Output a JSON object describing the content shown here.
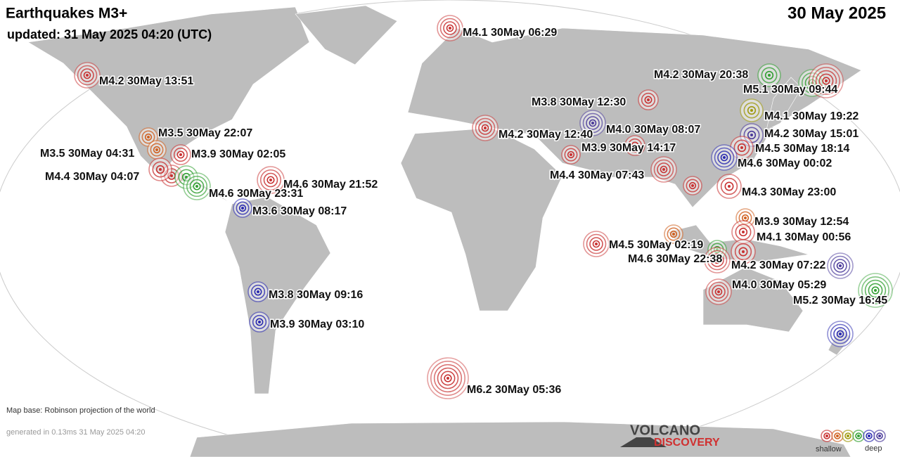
{
  "header": {
    "title": "Earthquakes M3+",
    "updated": "updated: 31 May 2025 04:20 (UTC)",
    "date": "30 May 2025"
  },
  "quakes": [
    {
      "label": "M4.1 30May 06:29",
      "color": "#c83232"
    },
    {
      "label": "M4.2 30May 13:51",
      "color": "#c83232"
    },
    {
      "label": "M4.2 30May 20:38",
      "color": "#33a033"
    },
    {
      "label": "M5.1 30May 09:44",
      "color": "#c83232"
    },
    {
      "label": "M3.8 30May 12:30",
      "color": "#c83232"
    },
    {
      "label": "M4.1 30May 19:22",
      "color": "#a09a10"
    },
    {
      "label": "M4.0 30May 08:07",
      "color": "#4a3a9a"
    },
    {
      "label": "M4.2 30May 12:40",
      "color": "#c83232"
    },
    {
      "label": "M3.5 30May 22:07",
      "color": "#d06020"
    },
    {
      "label": "M4.2 30May 15:01",
      "color": "#4a3a9a"
    },
    {
      "label": "M3.9 30May 14:17",
      "color": "#c83232"
    },
    {
      "label": "M4.5 30May 18:14",
      "color": "#c83232"
    },
    {
      "label": "M3.5 30May 04:31",
      "color": "#d06020"
    },
    {
      "label": "M3.9 30May 02:05",
      "color": "#c83232"
    },
    {
      "label": "M4.6 30May 00:02",
      "color": "#2a2ab0"
    },
    {
      "label": "M4.4 30May 07:43",
      "color": "#c83232"
    },
    {
      "label": "M4.4 30May 04:07",
      "color": "#c83232"
    },
    {
      "label": "M4.6 30May 21:52",
      "color": "#c83232"
    },
    {
      "label": "M4.6 30May 23:31",
      "color": "#33a033"
    },
    {
      "label": "M4.3 30May 23:00",
      "color": "#c83232"
    },
    {
      "label": "M3.6 30May 08:17",
      "color": "#2a2ab0"
    },
    {
      "label": "M3.9 30May 12:54",
      "color": "#d06020"
    },
    {
      "label": "M4.1 30May 00:56",
      "color": "#c83232"
    },
    {
      "label": "M4.5 30May 02:19",
      "color": "#c83232"
    },
    {
      "label": "M4.6 30May 22:38",
      "color": "#c83232"
    },
    {
      "label": "M4.2 30May 07:22",
      "color": "#c83232"
    },
    {
      "label": "M4.0 30May 05:29",
      "color": "#c83232"
    },
    {
      "label": "M5.2 30May 16:45",
      "color": "#33a033"
    },
    {
      "label": "M3.8 30May 09:16",
      "color": "#2a2ab0"
    },
    {
      "label": "M3.9 30May 03:10",
      "color": "#2a2ab0"
    },
    {
      "label": "M6.2 30May 05:36",
      "color": "#c83232"
    }
  ],
  "footer": {
    "map_base": "Map base: Robinson projection of the world",
    "generated": "generated in 0.13ms 31 May 2025 04:20"
  },
  "logo": {
    "top": "VOLCANO",
    "bottom": "DISCOVERY"
  },
  "legend": {
    "shallow": "shallow",
    "deep": "deep"
  }
}
